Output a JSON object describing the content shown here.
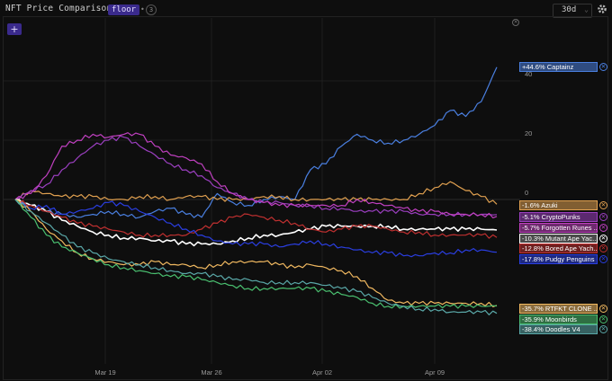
{
  "header": {
    "title": "NFT Price Comparison",
    "metric_pill": "floor",
    "metric_count": "3",
    "range": "30d",
    "add_label": "+"
  },
  "chart_data": {
    "type": "line",
    "title": "NFT Price Comparison",
    "x_ticks": [
      "Mar 19",
      "Mar 26",
      "Apr 02",
      "Apr 09"
    ],
    "y_ticks": [
      "40",
      "20",
      "0"
    ],
    "ylim": [
      -45,
      60
    ],
    "grid": true,
    "legend_placement": "right",
    "x": [
      "Mar 14",
      "Mar 15",
      "Mar 16",
      "Mar 17",
      "Mar 18",
      "Mar 19",
      "Mar 20",
      "Mar 21",
      "Mar 22",
      "Mar 23",
      "Mar 24",
      "Mar 25",
      "Mar 26",
      "Mar 27",
      "Mar 28",
      "Mar 29",
      "Mar 30",
      "Mar 31",
      "Apr 01",
      "Apr 02",
      "Apr 03",
      "Apr 04",
      "Apr 05",
      "Apr 06",
      "Apr 07",
      "Apr 08",
      "Apr 09",
      "Apr 10",
      "Apr 11",
      "Apr 12",
      "Apr 13",
      "Apr 14"
    ],
    "series": [
      {
        "name": "+44.6% Captainz",
        "label": "+44.6% Captainz",
        "color": "#4a7fe0",
        "values": [
          0,
          -2,
          -4,
          -5,
          -6,
          -5,
          -4,
          -5,
          -6,
          -4,
          -3,
          -5,
          -6,
          2,
          -1,
          -2,
          0,
          1,
          0,
          10,
          12,
          18,
          22,
          20,
          19,
          20,
          22,
          25,
          30,
          28,
          33,
          44.6
        ]
      },
      {
        "name": "-1.6% Azuki",
        "label": "-1.6% Azuki",
        "color": "#e0a050",
        "values": [
          0,
          3,
          2,
          1,
          1,
          1,
          0,
          0,
          1,
          1,
          0,
          1,
          1,
          0,
          0,
          0,
          1,
          1,
          0,
          0,
          0,
          0,
          0,
          0,
          0,
          0,
          2,
          4,
          6,
          3,
          1,
          -1.6
        ]
      },
      {
        "name": "-5.1% CryptoPunks",
        "label": "-5.1% CryptoPunks",
        "color": "#9b3fc0",
        "values": [
          0,
          3,
          5,
          10,
          14,
          18,
          20,
          21,
          18,
          15,
          12,
          10,
          8,
          4,
          2,
          0,
          -1,
          -1,
          -2,
          -2,
          -3,
          -3,
          -4,
          -4,
          -4,
          -4,
          -5,
          -5,
          -5,
          -5,
          -5,
          -5.1
        ]
      },
      {
        "name": "-5.7% Forgotten Runes",
        "label": "-5.7% Forgotten Runes ...",
        "color": "#c040c0",
        "values": [
          0,
          2,
          8,
          18,
          20,
          22,
          21,
          22,
          22,
          18,
          15,
          14,
          12,
          6,
          2,
          0,
          -1,
          -2,
          -2,
          -2,
          -2,
          -2,
          0,
          -1,
          -2,
          -3,
          -4,
          -4,
          -5,
          -5,
          -5,
          -5.7
        ]
      },
      {
        "name": "-10.3% Mutant Ape Yacht Club",
        "label": "-10.3% Mutant Ape Yac...",
        "color": "#ffffff",
        "values": [
          0,
          -2,
          -4,
          -7,
          -9,
          -11,
          -12,
          -13,
          -13,
          -14,
          -14,
          -15,
          -15,
          -15,
          -14,
          -13,
          -12,
          -12,
          -11,
          -10,
          -9,
          -9,
          -9,
          -9,
          -9,
          -10,
          -10,
          -10,
          -10,
          -10,
          -10,
          -10.3
        ]
      },
      {
        "name": "-12.8% Bored Ape Yacht Club",
        "label": "-12.8% Bored Ape Yach...",
        "color": "#c03030",
        "values": [
          0,
          -2,
          -4,
          -6,
          -8,
          -9,
          -10,
          -11,
          -12,
          -12,
          -12,
          -12,
          -10,
          -8,
          -6,
          -5,
          -6,
          -7,
          -8,
          -10,
          -11,
          -10,
          -9,
          -9,
          -10,
          -11,
          -11,
          -12,
          -12,
          -12,
          -12,
          -12.8
        ]
      },
      {
        "name": "-17.8% Pudgy Penguins",
        "label": "-17.8% Pudgy Penguins",
        "color": "#2a3ee0",
        "values": [
          0,
          -3,
          -2,
          -5,
          -4,
          -3,
          -1,
          -2,
          -4,
          -6,
          -8,
          -10,
          -12,
          -14,
          -15,
          -15,
          -15,
          -16,
          -15,
          -14,
          -15,
          -16,
          -17,
          -18,
          -18,
          -19,
          -19,
          -18,
          -18,
          -17,
          -17,
          -17.8
        ]
      },
      {
        "name": "-35.7% RTFKT CLONE X",
        "label": "-35.7% RTFKT CLONE ...",
        "color": "#f0b860",
        "values": [
          0,
          -4,
          -10,
          -14,
          -18,
          -20,
          -21,
          -22,
          -22,
          -21,
          -22,
          -22,
          -23,
          -22,
          -21,
          -21,
          -21,
          -22,
          -23,
          -22,
          -23,
          -24,
          -26,
          -30,
          -34,
          -35,
          -35,
          -35,
          -35,
          -35,
          -35,
          -35.7
        ]
      },
      {
        "name": "-35.9% Moonbirds",
        "label": "-35.9% Moonbirds",
        "color": "#4ac070",
        "values": [
          0,
          -6,
          -12,
          -16,
          -18,
          -20,
          -22,
          -23,
          -24,
          -25,
          -26,
          -26,
          -27,
          -28,
          -29,
          -30,
          -30,
          -30,
          -30,
          -30,
          -31,
          -32,
          -33,
          -35,
          -36,
          -36,
          -36,
          -36,
          -36,
          -36,
          -36,
          -35.9
        ]
      },
      {
        "name": "-38.4% Doodles V4",
        "label": "-38.4% Doodles V4",
        "color": "#5aa8a8",
        "values": [
          0,
          -4,
          -8,
          -12,
          -16,
          -18,
          -20,
          -21,
          -22,
          -23,
          -24,
          -25,
          -25,
          -26,
          -27,
          -27,
          -28,
          -28,
          -28,
          -28,
          -29,
          -30,
          -31,
          -33,
          -35,
          -36,
          -37,
          -37,
          -38,
          -38,
          -38,
          -38.4
        ]
      }
    ]
  },
  "legend_items": [
    {
      "label": "+44.6% Captainz",
      "color": "#4a7fe0",
      "value": 44.6
    },
    {
      "label": "-1.6% Azuki",
      "color": "#e0a050",
      "value": -1.6
    },
    {
      "label": "-5.1% CryptoPunks",
      "color": "#9b3fc0",
      "value": -5.1
    },
    {
      "label": "-5.7% Forgotten Runes ...",
      "color": "#c040c0",
      "value": -5.7
    },
    {
      "label": "-10.3% Mutant Ape Yac...",
      "color": "#ffffff",
      "value": -10.3
    },
    {
      "label": "-12.8% Bored Ape Yach...",
      "color": "#c03030",
      "value": -12.8
    },
    {
      "label": "-17.8% Pudgy Penguins",
      "color": "#2a3ee0",
      "value": -17.8
    },
    {
      "label": "-35.7% RTFKT CLONE ...",
      "color": "#f0b860",
      "value": -35.7
    },
    {
      "label": "-35.9% Moonbirds",
      "color": "#4ac070",
      "value": -35.9
    },
    {
      "label": "-38.4% Doodles V4",
      "color": "#5aa8a8",
      "value": -38.4
    }
  ],
  "colors": {
    "accent": "#3a2a8c",
    "background": "#0e0e0e"
  }
}
